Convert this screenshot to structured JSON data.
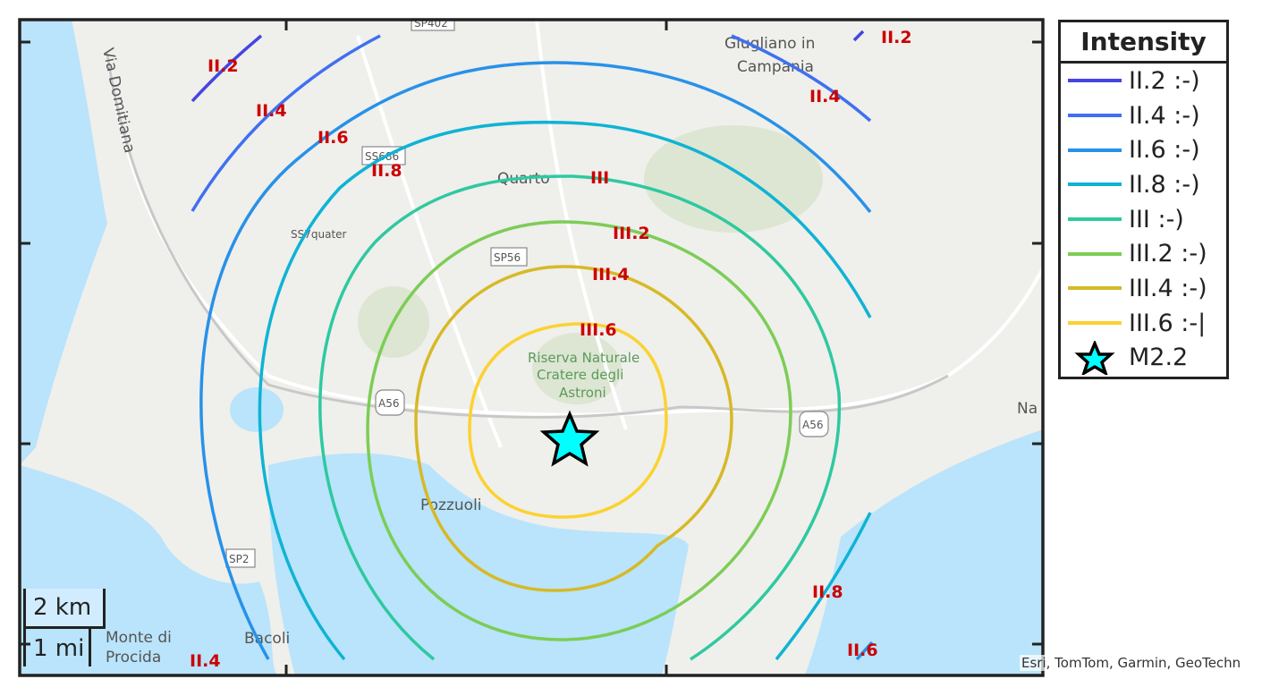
{
  "legend": {
    "title": "Intensity",
    "items": [
      {
        "label": "II.2 :-)",
        "color": "#4545e0"
      },
      {
        "label": "II.4 :-)",
        "color": "#4070f0"
      },
      {
        "label": "II.6 :-)",
        "color": "#2891e8"
      },
      {
        "label": "II.8 :-)",
        "color": "#0fb3d4"
      },
      {
        "label": "III :-)",
        "color": "#2ec9a0"
      },
      {
        "label": "III.2 :-)",
        "color": "#7ccd55"
      },
      {
        "label": "III.4 :-)",
        "color": "#d7b926"
      },
      {
        "label": "III.6 :-|",
        "color": "#fbd230"
      }
    ],
    "epicenter": {
      "label": "M2.2",
      "icon": "star-icon",
      "color": "#00ffff"
    }
  },
  "contour_labels": [
    "II.2",
    "II.4",
    "II.6",
    "II.8",
    "III",
    "III.2",
    "III.4",
    "III.6",
    "II.2",
    "II.4",
    "II.8",
    "II.6",
    "II.4"
  ],
  "map_labels": {
    "via_domitiana": "Via Domitiana",
    "sp402": "SP402",
    "giugliano1": "Giugliano in",
    "giugliano2": "Campania",
    "ss686": "SS686",
    "quarto": "Quarto",
    "ss7quater": "SS7quater",
    "sp56": "SP56",
    "astroni1": "Riserva Naturale",
    "astroni2": "Cratere degli",
    "astroni3": "Astroni",
    "a56a": "A56",
    "a56b": "A56",
    "pozzuoli": "Pozzuoli",
    "sp2": "SP2",
    "monte1": "Monte di",
    "monte2": "Procida",
    "bacoli": "Bacoli",
    "napoli": "Na"
  },
  "scale": {
    "km": "2 km",
    "mi": "1 mi"
  },
  "attribution": "Esri, TomTom, Garmin, GeoTechn"
}
